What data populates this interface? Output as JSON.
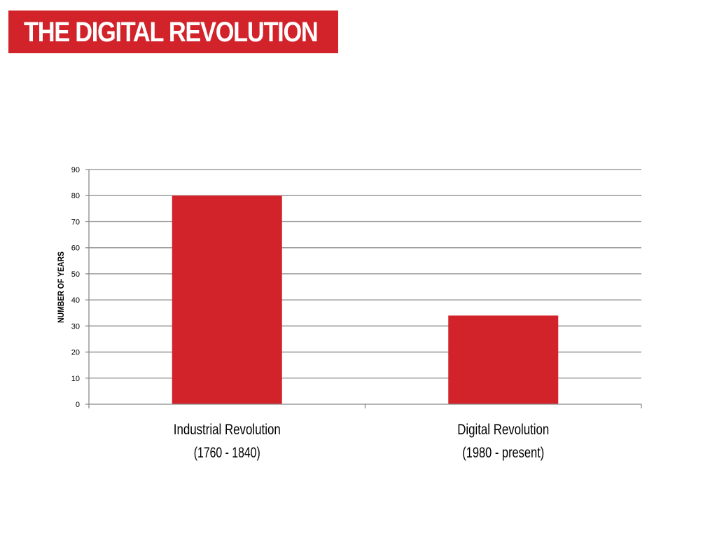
{
  "slide": {
    "title": "THE DIGITAL REVOLUTION"
  },
  "colors": {
    "accent": "#d2232a",
    "grid": "#8a8a8a",
    "text": "#000000"
  },
  "chart_data": {
    "type": "bar",
    "categories": [
      [
        "Industrial Revolution",
        "(1760 - 1840)"
      ],
      [
        "Digital Revolution",
        "(1980 - present)"
      ]
    ],
    "values": [
      80,
      34
    ],
    "title": "",
    "xlabel": "",
    "ylabel": "NUMBER OF YEARS",
    "ylim": [
      0,
      90
    ],
    "yticks": [
      0,
      10,
      20,
      30,
      40,
      50,
      60,
      70,
      80,
      90
    ],
    "grid": true,
    "legend": "none"
  }
}
